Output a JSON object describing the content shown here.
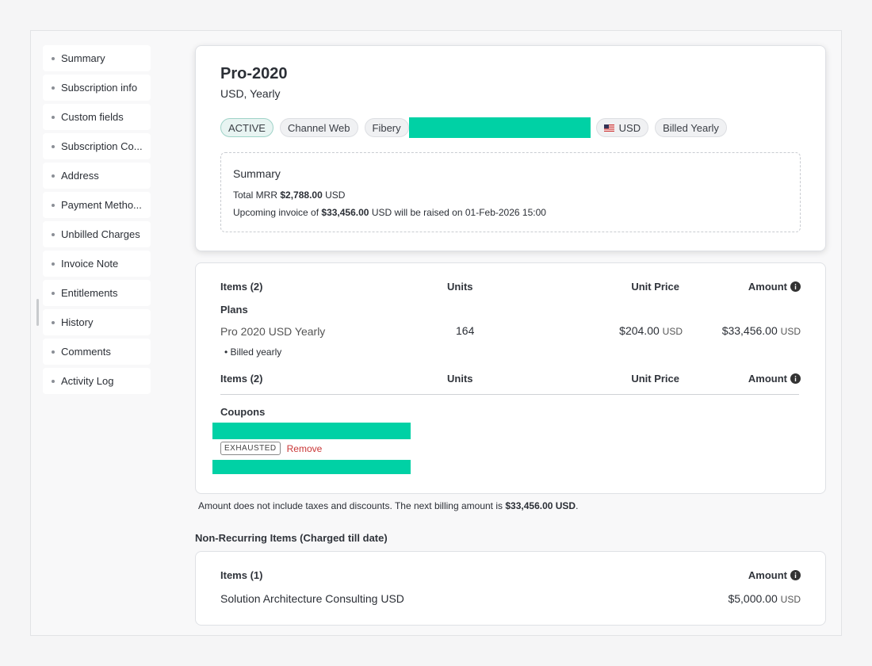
{
  "sidebar": {
    "items": [
      "Summary",
      "Subscription info",
      "Custom fields",
      "Subscription Co...",
      "Address",
      "Payment Metho...",
      "Unbilled Charges",
      "Invoice Note",
      "Entitlements",
      "History",
      "Comments",
      "Activity Log"
    ]
  },
  "header": {
    "title": "Pro-2020",
    "subtitle": "USD, Yearly",
    "tags": [
      "ACTIVE",
      "Channel Web",
      "Fibery",
      "USD",
      "Billed Yearly"
    ]
  },
  "summary": {
    "title": "Summary",
    "mrr_label": "Total MRR",
    "mrr_amount": "$2,788.00",
    "mrr_currency": "USD",
    "invoice_prefix": "Upcoming invoice of",
    "invoice_amount": "$33,456.00",
    "invoice_suffix": "USD will be raised on 01-Feb-2026 15:00"
  },
  "items_table": {
    "headers": [
      "Items (2)",
      "Units",
      "Unit Price",
      "Amount"
    ],
    "section": "Plans",
    "rows": [
      {
        "name": "Pro 2020 USD Yearly",
        "units": 164,
        "unit_price": "$204.00",
        "unit_price_currency": "USD",
        "amount": "$33,456.00",
        "amount_currency": "USD",
        "note": "Billed yearly"
      }
    ]
  },
  "coupons": {
    "title": "Coupons",
    "status": "EXHAUSTED",
    "action": "Remove"
  },
  "footnote": {
    "prefix": "Amount does not include taxes and discounts. The next billing amount is",
    "amount": "$33,456.00 USD",
    "suffix": "."
  },
  "non_recurring": {
    "title": "Non-Recurring Items (Charged till date)",
    "headers": [
      "Items (1)",
      "Amount"
    ],
    "rows": [
      {
        "name": "Solution Architecture Consulting USD",
        "amount": "$5,000.00",
        "currency": "USD"
      }
    ]
  }
}
